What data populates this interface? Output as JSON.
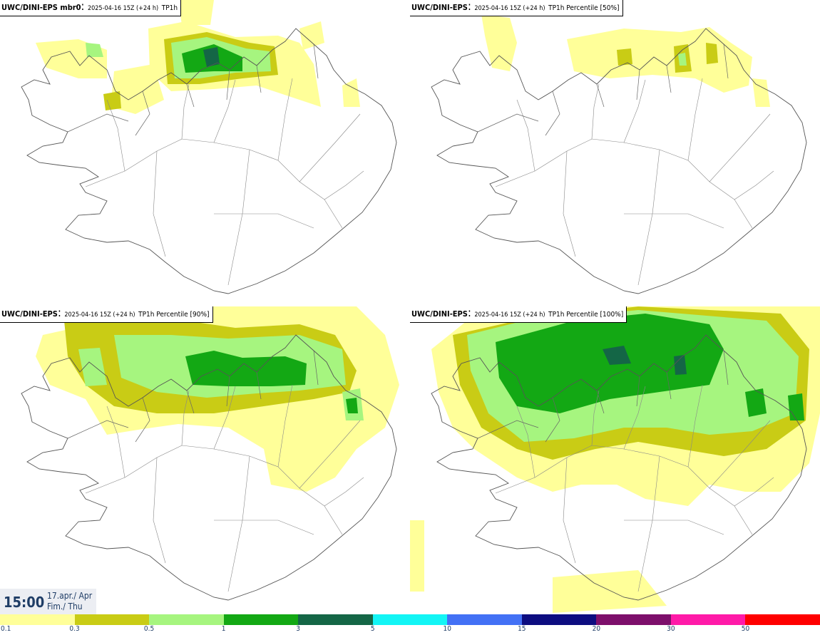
{
  "panels": [
    {
      "model": "UWC/DINI-EPS mbr0",
      "meta": "2025-04-16 15Z (+24 h)",
      "field": "TP1h"
    },
    {
      "model": "UWC/DINI-EPS",
      "meta": "2025-04-16 15Z (+24 h)",
      "field": "TP1h Percentile [50%]"
    },
    {
      "model": "UWC/DINI-EPS",
      "meta": "2025-04-16 15Z (+24 h)",
      "field": "TP1h Percentile [90%]"
    },
    {
      "model": "UWC/DINI-EPS",
      "meta": "2025-04-16 15Z (+24 h)",
      "field": "TP1h Percentile [100%]"
    }
  ],
  "timebox": {
    "time": "15:00",
    "date_line1": "17.apr./ Apr",
    "date_line2": "Fim./ Thu"
  },
  "legend": {
    "colors": [
      "#ffff99",
      "#c9cc15",
      "#a6f57f",
      "#13a814",
      "#146646",
      "#13f5f5",
      "#4371f5",
      "#0d0d80",
      "#7d0f6b",
      "#ff1aa8",
      "#ff0000"
    ],
    "ticks": [
      "0.1",
      "0.3",
      "0.5",
      "1",
      "3",
      "5",
      "10",
      "15",
      "20",
      "30",
      "50"
    ]
  }
}
